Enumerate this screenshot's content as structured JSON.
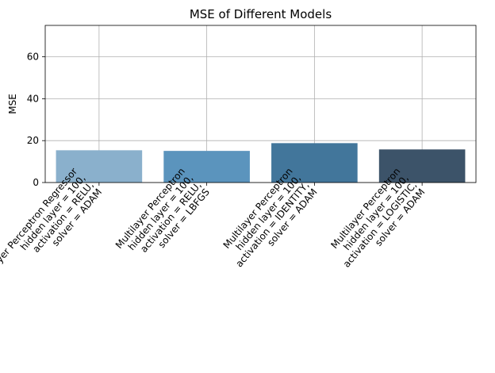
{
  "chart_data": {
    "type": "bar",
    "title": "MSE of Different Models",
    "xlabel": "",
    "ylabel": "MSE",
    "ylim": [
      0,
      75
    ],
    "yticks": [
      0,
      20,
      40,
      60
    ],
    "grid": true,
    "categories": [
      [
        "Multilayer Perceptron Regressor",
        "hidden layer = 100,",
        "activation = RELU,",
        "solver = ADAM"
      ],
      [
        "Multilayer Perceptron",
        "hidden layer = 100,",
        "activation = RELU,",
        "solver = LBFGS"
      ],
      [
        "Multilayer Perceptron",
        "hidden layer = 100,",
        "activation = IDENTITY,",
        "solver = ADAM"
      ],
      [
        "Multilayer Perceptron",
        "hidden layer = 100,",
        "activation = LOGISTIC,",
        "solver = ADAM"
      ]
    ],
    "values": [
      15.4,
      15.1,
      18.8,
      15.8
    ],
    "colors": [
      "#8ab0cc",
      "#5b94bd",
      "#42769b",
      "#3c5369"
    ]
  }
}
